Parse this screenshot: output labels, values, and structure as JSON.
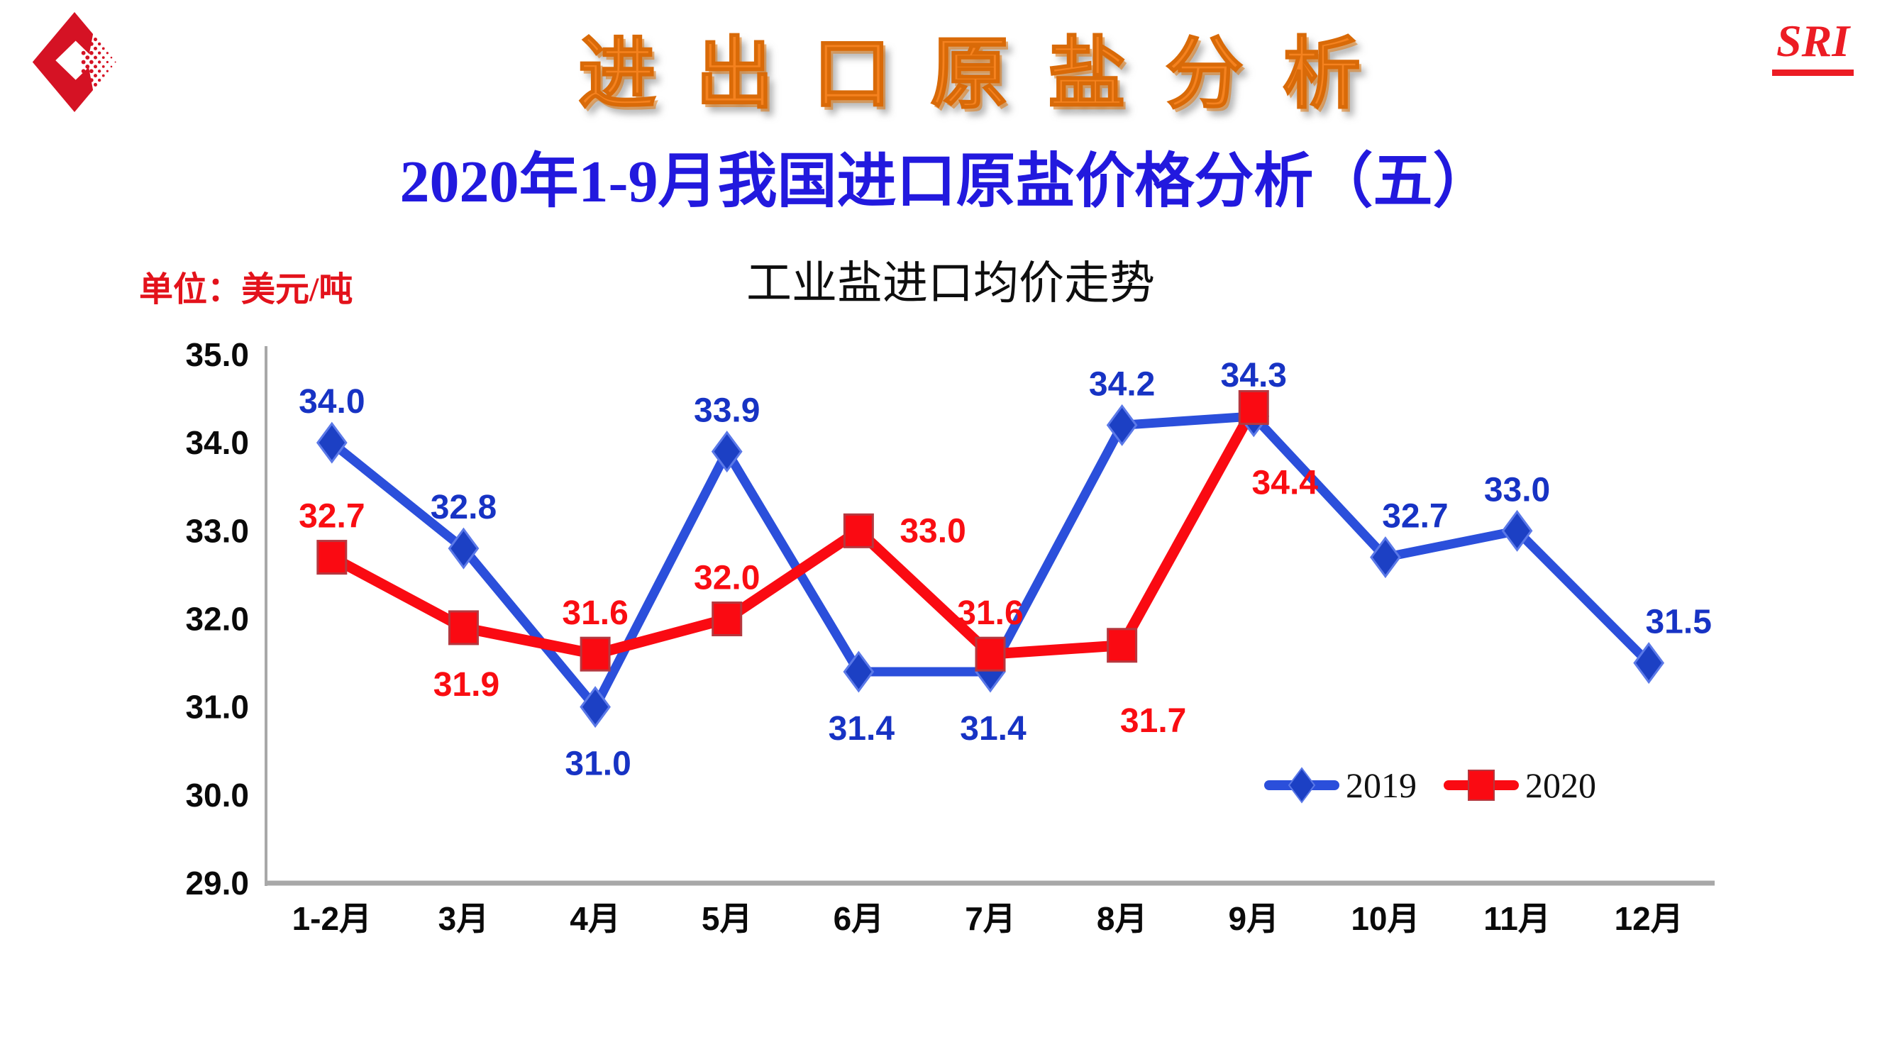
{
  "page": {
    "brand": "SRI",
    "title": "进 出 口 原 盐 分 析",
    "subtitle": "2020年1-9月我国进口原盐价格分析（五）",
    "unit_label": "单位：美元/吨",
    "colors": {
      "title_orange": "#F5821F",
      "subtitle_blue": "#2219DE",
      "brand_red": "#EC1C24",
      "unit_red": "#E3121B",
      "logo_red": "#D51224",
      "axis_gray": "#A8A8A8"
    }
  },
  "chart_data": {
    "type": "line",
    "title": "工业盐进口均价走势",
    "categories": [
      "1-2月",
      "3月",
      "4月",
      "5月",
      "6月",
      "7月",
      "8月",
      "9月",
      "10月",
      "11月",
      "12月"
    ],
    "series": [
      {
        "name": "2019",
        "marker": "diamond",
        "line_color": "#2B4FDB",
        "marker_color": "#1C40C4",
        "marker_edge": "#5B79E8",
        "label_color": "#1733C4",
        "values": [
          34.0,
          32.8,
          31.0,
          33.9,
          31.4,
          31.4,
          34.2,
          34.3,
          32.7,
          33.0,
          31.5
        ],
        "labels": [
          "34.0",
          "32.8",
          "31.0",
          "33.9",
          "31.4",
          "31.4",
          "34.2",
          "34.3",
          "32.7",
          "33.0",
          "31.5"
        ],
        "label_positions": [
          "above",
          "above",
          "below",
          "above",
          "below",
          "below",
          "above",
          "above",
          "above-right",
          "above",
          "above-right"
        ]
      },
      {
        "name": "2020",
        "marker": "square",
        "line_color": "#FA0A12",
        "marker_color": "#FA0A12",
        "marker_edge": "#B5383F",
        "label_color": "#F90D12",
        "values": [
          32.7,
          31.9,
          31.6,
          32.0,
          33.0,
          31.6,
          31.7,
          34.4
        ],
        "labels": [
          "32.7",
          "31.9",
          "31.6",
          "32.0",
          "33.0",
          "31.6",
          "31.7",
          "34.4"
        ],
        "label_positions": [
          "above",
          "below",
          "above",
          "above",
          "right",
          "above",
          "below-right",
          "below-right"
        ]
      }
    ],
    "ylabel": "",
    "xlabel": "",
    "ylim": [
      29.0,
      35.0
    ],
    "ytick_step": 1.0,
    "yticks": [
      "35.0",
      "34.0",
      "33.0",
      "32.0",
      "31.0",
      "30.0",
      "29.0"
    ],
    "grid": "off",
    "legend": {
      "position": "inside-bottom-right",
      "entries": [
        "2019",
        "2020"
      ]
    }
  }
}
